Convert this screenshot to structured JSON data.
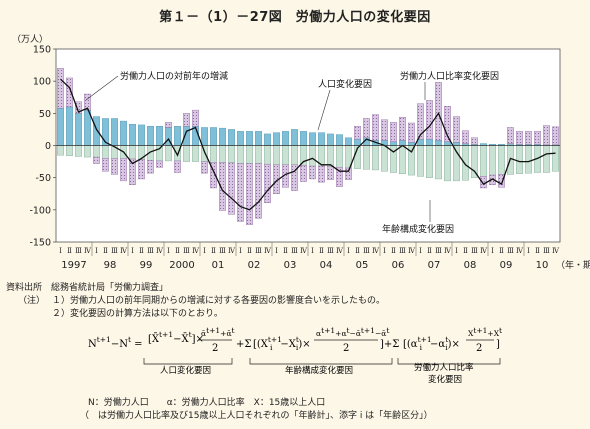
{
  "title": "第１－（1）－27図　労働力人口の変化要因",
  "chart_data": {
    "type": "bar+line",
    "yunit": "（万人）",
    "ylim": [
      -150,
      150
    ],
    "yticks": [
      150,
      100,
      50,
      0,
      -50,
      -100,
      -150
    ],
    "xlabel_suffix": "（年・期）",
    "quarter_labels": [
      "Ⅰ",
      "Ⅱ",
      "Ⅲ",
      "Ⅳ"
    ],
    "year_labels": [
      "1997",
      "98",
      "99",
      "2000",
      "01",
      "02",
      "03",
      "04",
      "05",
      "06",
      "07",
      "08",
      "09",
      "10"
    ],
    "colors": {
      "population": "#7fc0d8",
      "participation": "#d9c6e3",
      "age_structure": "#c9e2d4",
      "line": "#111111"
    },
    "series": [
      {
        "name": "人口変化要因",
        "key": "population",
        "values": [
          58,
          60,
          50,
          55,
          45,
          42,
          42,
          38,
          33,
          32,
          30,
          30,
          28,
          30,
          30,
          30,
          28,
          28,
          27,
          25,
          22,
          22,
          22,
          18,
          20,
          22,
          25,
          22,
          20,
          20,
          18,
          17,
          12,
          10,
          12,
          8,
          8,
          6,
          8,
          5,
          10,
          10,
          8,
          6,
          5,
          3,
          2,
          3,
          2,
          2,
          3,
          2,
          2,
          2,
          1,
          1
        ]
      },
      {
        "name": "年齢構成変化要因",
        "key": "age_structure",
        "values": [
          -15,
          -16,
          -17,
          -18,
          -18,
          -20,
          -20,
          -20,
          -21,
          -22,
          -23,
          -24,
          -24,
          -24,
          -25,
          -25,
          -25,
          -26,
          -26,
          -27,
          -28,
          -28,
          -28,
          -29,
          -30,
          -30,
          -30,
          -31,
          -32,
          -32,
          -33,
          -34,
          -35,
          -36,
          -37,
          -38,
          -40,
          -42,
          -44,
          -46,
          -48,
          -50,
          -52,
          -55,
          -55,
          -54,
          -50,
          -48,
          -46,
          -45,
          -45,
          -44,
          -43,
          -42,
          -42,
          -40
        ]
      },
      {
        "name": "労働力人口比率変化要因",
        "key": "participation",
        "values": [
          62,
          45,
          18,
          25,
          -10,
          -20,
          -25,
          -35,
          -40,
          -30,
          -20,
          -10,
          8,
          -18,
          20,
          25,
          -18,
          -40,
          -75,
          -80,
          -90,
          -95,
          -85,
          -60,
          -45,
          -35,
          -40,
          -25,
          -20,
          -25,
          -20,
          -30,
          -18,
          20,
          30,
          40,
          32,
          30,
          36,
          30,
          55,
          60,
          90,
          55,
          40,
          20,
          10,
          -18,
          -15,
          -20,
          25,
          20,
          20,
          20,
          30,
          28
        ]
      }
    ],
    "line": {
      "name": "労働力人口の対前年の増減",
      "values": [
        103,
        90,
        52,
        58,
        25,
        5,
        -2,
        -10,
        -28,
        -20,
        -10,
        -5,
        10,
        -15,
        22,
        28,
        -10,
        -40,
        -70,
        -82,
        -95,
        -100,
        -88,
        -70,
        -55,
        -45,
        -40,
        -25,
        -20,
        -30,
        -30,
        -40,
        -40,
        -4,
        10,
        5,
        0,
        -10,
        0,
        -10,
        17,
        30,
        50,
        15,
        -10,
        -30,
        -40,
        -60,
        -52,
        -60,
        -20,
        -25,
        -25,
        -20,
        -13,
        -12
      ]
    }
  },
  "annotations": {
    "line_label": "労働力人口の対前年の増減",
    "population_label": "人口変化要因",
    "participation_label": "労働力人口比率変化要因",
    "age_label": "年齢構成変化要因"
  },
  "notes": {
    "source": "資料出所　総務省統計局「労働力調査」",
    "note_head": "（注）",
    "note1": "１）労働力人口の前年同期からの増減に対する各要因の影響度合いを示したもの。",
    "note2": "２）変化要因の計算方法は以下のとおり。"
  },
  "formula": {
    "lhs": "N",
    "eq": "=",
    "pop_label": "人口変化要因",
    "age_label": "年齢構成変化要因",
    "part_label_1": "労働力人口比率",
    "part_label_2": "変化要因"
  },
  "legend_defs": {
    "line1": "N：労働力人口　　α：労働力人口比率　X：15歳以上人口",
    "line2": "（　は労働力人口比率及び15歳以上人口それぞれの「年齢計」、添字 i は「年齢区分」）"
  }
}
